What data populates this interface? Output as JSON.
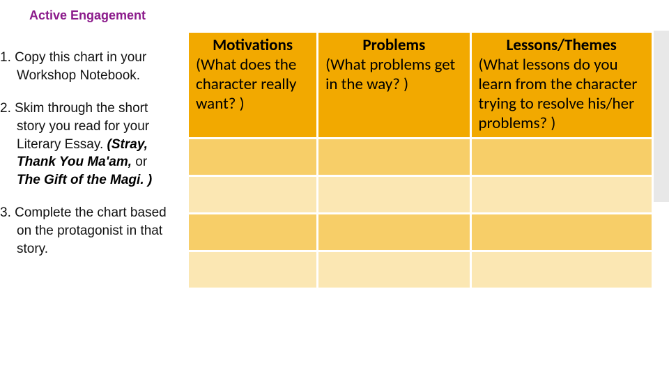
{
  "title": "Active Engagement",
  "instructions": {
    "i1": "1. Copy this chart in your Workshop Notebook.",
    "i2_a": "2. Skim through the short story you read for your Literary Essay. ",
    "i2_b": "(Stray, Thank You Ma'am, ",
    "i2_c": "or ",
    "i2_d": "The Gift of the Magi. )",
    "i3": "3. Complete the chart based on the protagonist in that story."
  },
  "chart": {
    "headers": {
      "c1_title": "Motivations",
      "c1_sub": "(What does the character really want? )",
      "c2_title": "Problems",
      "c2_sub": "(What problems get in the way? )",
      "c3_title": "Lessons/Themes",
      "c3_sub": "(What lessons do you learn from the character trying to resolve his/her problems? )"
    },
    "colors": {
      "header_bg": "#f2a900",
      "row_a_bg": "#f7ce68",
      "row_b_bg": "#fbe7b3",
      "border": "#ffffff",
      "title_color": "#8b1a8b"
    },
    "rows": 4
  }
}
